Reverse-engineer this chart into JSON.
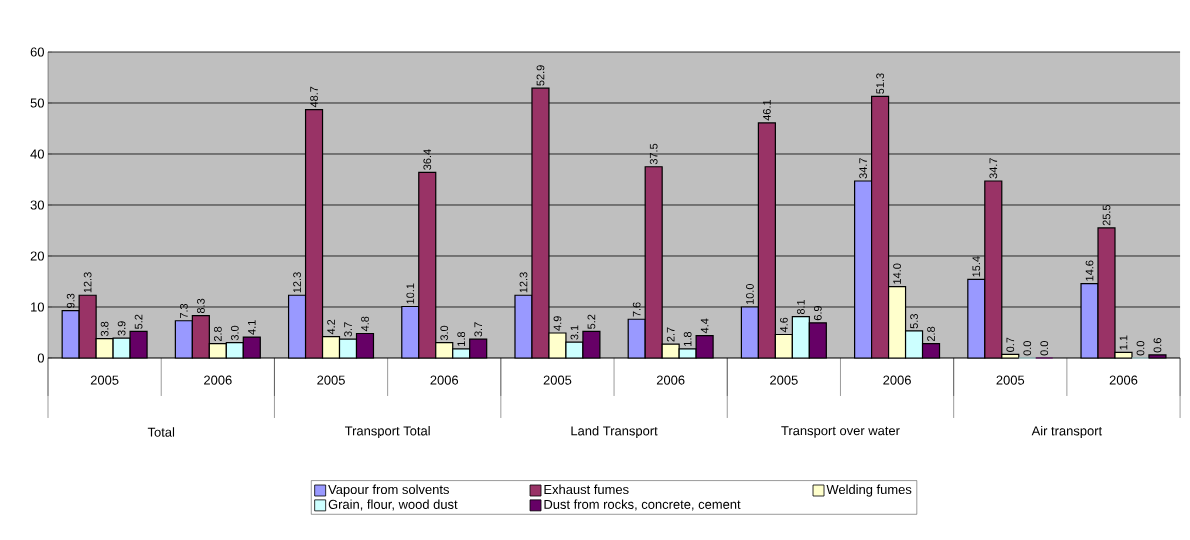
{
  "chart_data": {
    "type": "bar",
    "categories": [
      "2005",
      "2006",
      "2005",
      "2006",
      "2005",
      "2006",
      "2005",
      "2006",
      "2005",
      "2006"
    ],
    "annotations": [
      "Total",
      "Transport Total",
      "Land Transport",
      "Transport over water",
      "Air transport"
    ],
    "series": [
      {
        "name": "Vapour from solvents",
        "color": "#9999ff",
        "values": [
          9.3,
          7.3,
          12.3,
          10.1,
          12.3,
          7.6,
          10.0,
          34.7,
          15.4,
          14.6
        ],
        "value_labels": [
          "9.3",
          "7.3",
          "12.3",
          "10.1",
          "12.3",
          "7.6",
          "10.0",
          "34.7",
          "15.4",
          "14.6"
        ]
      },
      {
        "name": "Exhaust fumes",
        "color": "#993366",
        "values": [
          12.3,
          8.3,
          48.7,
          36.4,
          52.9,
          37.5,
          46.1,
          51.3,
          34.7,
          25.5
        ],
        "value_labels": [
          "12.3",
          "8.3",
          "48.7",
          "36.4",
          "52.9",
          "37.5",
          "46.1",
          "51.3",
          "34.7",
          "25.5"
        ]
      },
      {
        "name": "Welding fumes",
        "color": "#ffffcc",
        "values": [
          3.8,
          2.8,
          4.2,
          3.0,
          4.9,
          2.7,
          4.6,
          14.0,
          0.7,
          1.1
        ],
        "value_labels": [
          "3.8",
          "2.8",
          "4.2",
          "3.0",
          "4.9",
          "2.7",
          "4.6",
          "14.0",
          "0.7",
          "1.1"
        ]
      },
      {
        "name": "Grain, flour, wood dust",
        "color": "#ccffff",
        "values": [
          3.9,
          3.0,
          3.7,
          1.8,
          3.1,
          1.8,
          8.1,
          5.3,
          0.0,
          0.0
        ],
        "value_labels": [
          "3.9",
          "3.0",
          "3.7",
          "1.8",
          "3.1",
          "1.8",
          "8.1",
          "5.3",
          "0.0",
          "0.0"
        ]
      },
      {
        "name": "Dust from rocks, concrete, cement",
        "color": "#660066",
        "values": [
          5.2,
          4.1,
          4.8,
          3.7,
          5.2,
          4.4,
          6.9,
          2.8,
          0.0,
          0.6
        ],
        "value_labels": [
          "5.2",
          "4.1",
          "4.8",
          "3.7",
          "5.2",
          "4.4",
          "6.9",
          "2.8",
          "0.0",
          "0.6"
        ]
      }
    ],
    "ylim": [
      0,
      60
    ],
    "yticks": [
      0,
      10,
      20,
      30,
      40,
      50,
      60
    ],
    "grid": "y",
    "legend": "bottom"
  }
}
